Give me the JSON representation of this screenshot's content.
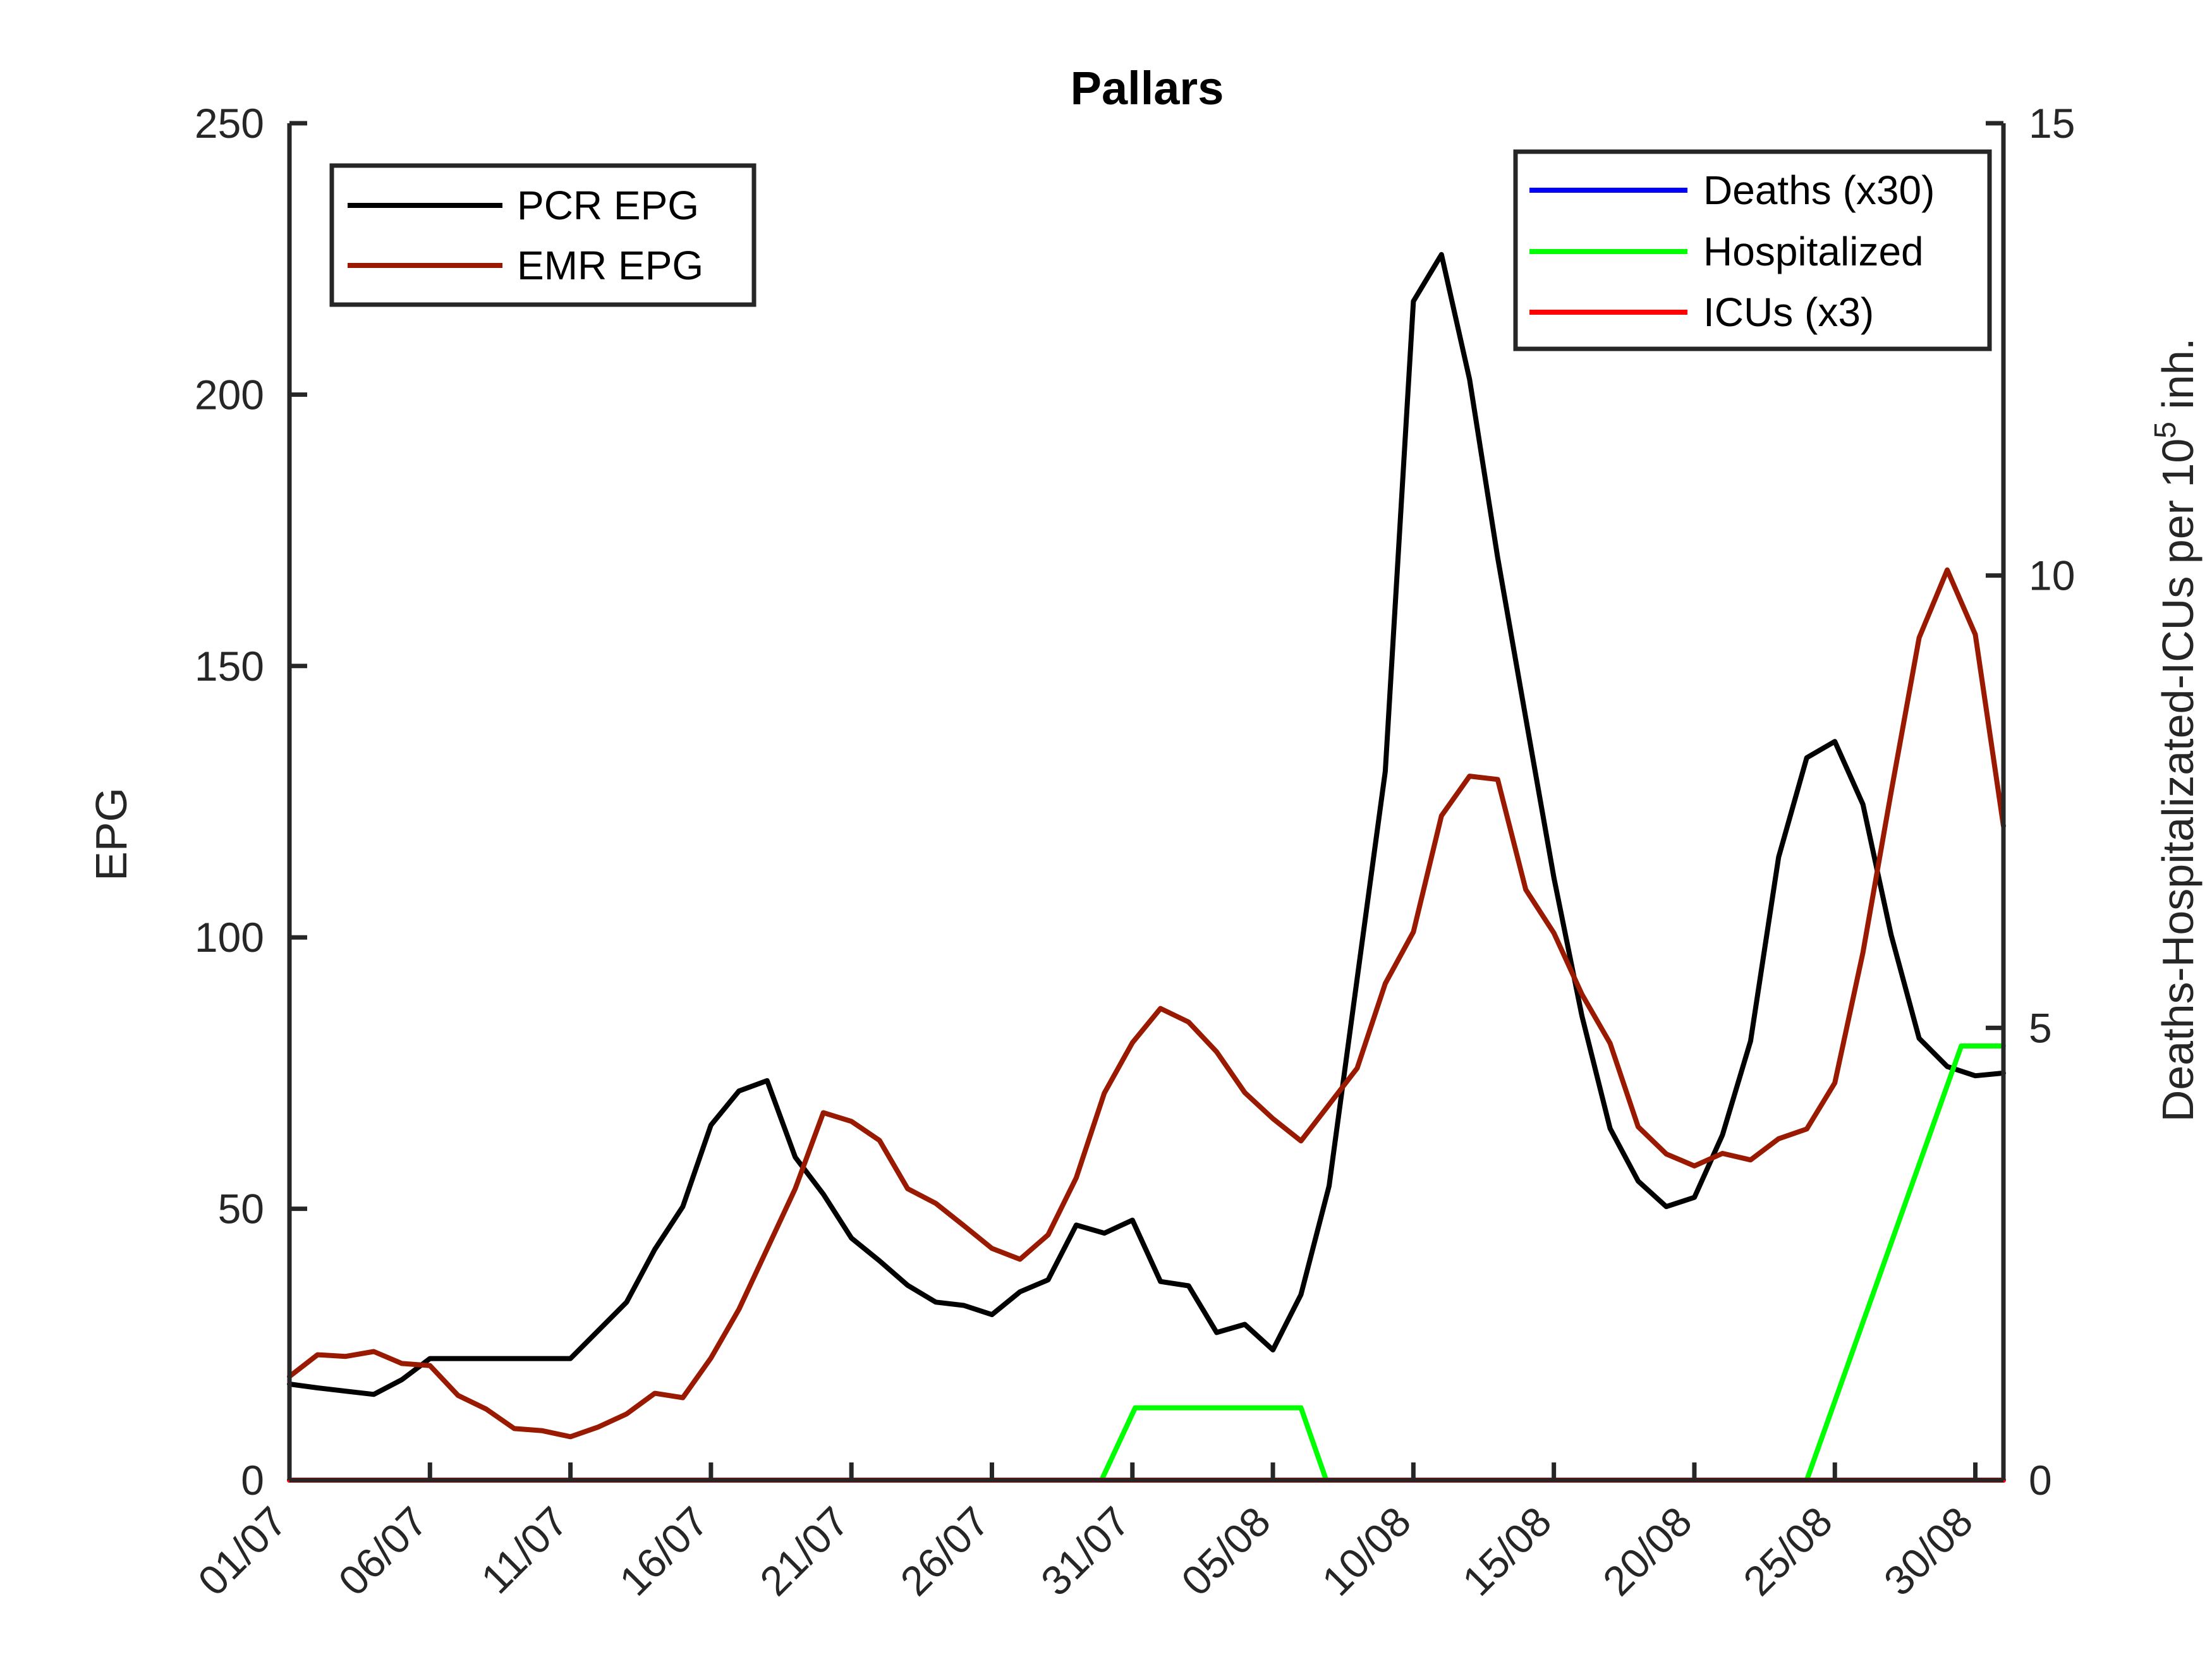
{
  "chart_data": {
    "type": "line",
    "title": "Pallars",
    "ylabel_left": "EPG",
    "ylabel_right": "Deaths-Hospitalizated-ICUs per 10",
    "ylabel_right_sup": "5",
    "ylabel_right_suffix": " inh.",
    "ylim_left": [
      0,
      250
    ],
    "yticks_left": [
      0,
      50,
      100,
      150,
      200,
      250
    ],
    "ylim_right": [
      0,
      15
    ],
    "yticks_right": [
      0,
      5,
      10,
      15
    ],
    "xlim": [
      0,
      61
    ],
    "xtick_positions": [
      0,
      5,
      10,
      15,
      20,
      25,
      30,
      35,
      40,
      45,
      50,
      55,
      60
    ],
    "xtick_labels": [
      "01/07",
      "06/07",
      "11/07",
      "16/07",
      "21/07",
      "26/07",
      "31/07",
      "05/08",
      "10/08",
      "15/08",
      "20/08",
      "25/08",
      "30/08"
    ],
    "grid": false,
    "legend_left_placement": "top-left",
    "legend_right_placement": "top-right",
    "series": [
      {
        "name": "PCR EPG",
        "axis": "left",
        "color": "#000000",
        "x": [
          0,
          1,
          2,
          3,
          4,
          5,
          6,
          7,
          8,
          9,
          10,
          11,
          12,
          13,
          14,
          15,
          16,
          17,
          18,
          19,
          20,
          21,
          22,
          23,
          24,
          25,
          26,
          27,
          28,
          29,
          30,
          31,
          32,
          33,
          34,
          35,
          36,
          37,
          38,
          39,
          40,
          41,
          42,
          43,
          44,
          45,
          46,
          47,
          48,
          49,
          50,
          51,
          52,
          53,
          54,
          55,
          56,
          57,
          58,
          59,
          60,
          61
        ],
        "values": [
          17.7,
          17,
          16.4,
          15.8,
          18.5,
          22.4,
          22.4,
          22.4,
          22.4,
          22.4,
          22.4,
          27.6,
          32.8,
          42.5,
          50.4,
          65.4,
          71.7,
          73.6,
          59.5,
          52.7,
          44.6,
          40.4,
          35.9,
          32.8,
          32.2,
          30.5,
          34.7,
          36.9,
          47,
          45.5,
          47.9,
          36.6,
          35.8,
          27.2,
          28.7,
          24,
          34.2,
          54.2,
          92.4,
          130.6,
          217.2,
          225.8,
          202.8,
          170,
          140.4,
          111,
          85.5,
          64.8,
          55.1,
          50.4,
          52.1,
          63.6,
          80.9,
          114.8,
          133.1,
          136.1,
          124.5,
          100.5,
          81.4,
          76.2,
          74.5,
          75
        ]
      },
      {
        "name": "EMR EPG",
        "axis": "left",
        "color": "#991a00",
        "x": [
          0,
          1,
          2,
          3,
          4,
          5,
          6,
          7,
          8,
          9,
          10,
          11,
          12,
          13,
          14,
          15,
          16,
          17,
          18,
          19,
          20,
          21,
          22,
          23,
          24,
          25,
          26,
          27,
          28,
          29,
          30,
          31,
          32,
          33,
          34,
          35,
          36,
          37,
          38,
          39,
          40,
          41,
          42,
          43,
          44,
          45,
          46,
          47,
          48,
          49,
          50,
          51,
          52,
          53,
          54,
          55,
          56,
          57,
          58,
          59,
          60,
          61
        ],
        "values": [
          19.1,
          23.1,
          22.8,
          23.7,
          21.5,
          21.1,
          15.6,
          13.1,
          9.5,
          9.1,
          8,
          9.8,
          12.2,
          16,
          15.2,
          22.5,
          31.5,
          42.6,
          53.7,
          67.7,
          66.1,
          62.6,
          53.7,
          51,
          46.9,
          42.7,
          40.7,
          45.2,
          55.7,
          71.3,
          80.6,
          86.9,
          84.4,
          78.9,
          71.4,
          66.6,
          62.5,
          69.2,
          75.9,
          91.5,
          101,
          122.4,
          129.7,
          129.1,
          108.8,
          100.8,
          89.5,
          80.5,
          65.1,
          60.1,
          57.9,
          60.2,
          59,
          62.9,
          64.7,
          73.2,
          97.2,
          126.7,
          155.2,
          167.7,
          155.8,
          120.5
        ]
      },
      {
        "name": "Deaths (x30)",
        "axis": "right",
        "color": "#0000ff",
        "x": [
          0,
          61
        ],
        "values": [
          0,
          0
        ]
      },
      {
        "name": "Hospitalized",
        "axis": "right",
        "color": "#00ff00",
        "x": [
          0,
          28.9,
          30.1,
          36,
          36.9,
          54,
          59.5,
          61
        ],
        "values": [
          0,
          0,
          0.8,
          0.8,
          0,
          0,
          4.8,
          4.8
        ]
      },
      {
        "name": "ICUs (x3)",
        "axis": "right",
        "color": "#ff0000",
        "x": [
          0,
          61
        ],
        "values": [
          0,
          0
        ]
      }
    ]
  }
}
